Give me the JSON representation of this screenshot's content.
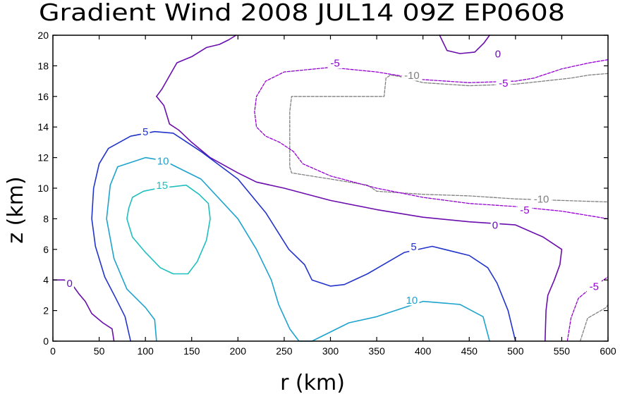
{
  "chart_data": {
    "type": "contour",
    "title": "Gradient Wind 2008 JUL14 09Z  EP0608",
    "xlabel": "r (km)",
    "ylabel": "z (km)",
    "xlim": [
      0,
      600
    ],
    "ylim": [
      0,
      20
    ],
    "xticks": [
      0,
      50,
      100,
      150,
      200,
      250,
      300,
      350,
      400,
      450,
      500,
      550,
      600
    ],
    "yticks": [
      0,
      2,
      4,
      6,
      8,
      10,
      12,
      14,
      16,
      18,
      20
    ],
    "contours": [
      {
        "level": -10,
        "color": "#808080",
        "dashed": true,
        "lines": [
          [
            [
              600,
              17.5
            ],
            [
              580,
              17.4
            ],
            [
              560,
              17.2
            ],
            [
              500,
              16.8
            ],
            [
              450,
              16.7
            ],
            [
              400,
              16.9
            ],
            [
              375,
              17.3
            ],
            [
              365,
              17.4
            ],
            [
              360,
              17.2
            ],
            [
              358,
              16.0
            ],
            [
              258,
              16.0
            ],
            [
              256,
              15.0
            ],
            [
              256,
              11.4
            ],
            [
              258,
              11.0
            ],
            [
              300,
              10.6
            ],
            [
              340,
              10.2
            ],
            [
              350,
              9.8
            ],
            [
              400,
              9.6
            ],
            [
              450,
              9.5
            ],
            [
              500,
              9.3
            ],
            [
              550,
              9.2
            ],
            [
              600,
              9.1
            ]
          ],
          [
            [
              570,
              0
            ],
            [
              578,
              1.5
            ],
            [
              598,
              2.2
            ],
            [
              600,
              2.4
            ]
          ]
        ]
      },
      {
        "level": -5,
        "color": "#9400d3",
        "dashed": true,
        "lines": [
          [
            [
              600,
              18.4
            ],
            [
              580,
              18.2
            ],
            [
              550,
              17.8
            ],
            [
              520,
              17.2
            ],
            [
              500,
              17.0
            ],
            [
              450,
              16.9
            ],
            [
              400,
              17.1
            ],
            [
              350,
              17.6
            ],
            [
              300,
              17.9
            ],
            [
              250,
              17.6
            ],
            [
              230,
              17.0
            ],
            [
              220,
              16.0
            ],
            [
              218,
              15.0
            ],
            [
              220,
              14.0
            ],
            [
              230,
              13.4
            ],
            [
              245,
              13.0
            ],
            [
              260,
              12.4
            ],
            [
              270,
              11.6
            ],
            [
              300,
              10.8
            ],
            [
              350,
              10.0
            ],
            [
              400,
              9.4
            ],
            [
              450,
              9.0
            ],
            [
              500,
              8.8
            ],
            [
              550,
              8.5
            ],
            [
              600,
              8.0
            ]
          ],
          [
            [
              556,
              0
            ],
            [
              560,
              1.5
            ],
            [
              568,
              2.8
            ],
            [
              580,
              3.4
            ],
            [
              600,
              4.2
            ]
          ]
        ]
      },
      {
        "level": 0,
        "color": "#6a0dad",
        "dashed": false,
        "lines": [
          [
            [
              112,
              16.0
            ],
            [
              118,
              16.5
            ],
            [
              134,
              18.2
            ],
            [
              150,
              18.6
            ],
            [
              166,
              19.2
            ],
            [
              180,
              19.4
            ],
            [
              190,
              19.7
            ],
            [
              198,
              20.0
            ]
          ],
          [
            [
              418,
              20.0
            ],
            [
              426,
              19.0
            ],
            [
              440,
              18.8
            ],
            [
              456,
              18.9
            ],
            [
              466,
              19.5
            ],
            [
              472,
              20.0
            ]
          ],
          [
            [
              112,
              16.0
            ],
            [
              120,
              15.4
            ],
            [
              126,
              14.2
            ],
            [
              136,
              13.8
            ],
            [
              150,
              13.0
            ],
            [
              170,
              12.0
            ],
            [
              200,
              11.0
            ],
            [
              220,
              10.4
            ],
            [
              250,
              10.0
            ],
            [
              300,
              9.2
            ],
            [
              350,
              8.6
            ],
            [
              400,
              8.1
            ],
            [
              450,
              7.8
            ],
            [
              500,
              7.6
            ],
            [
              530,
              6.8
            ],
            [
              550,
              6.0
            ],
            [
              548,
              5.0
            ],
            [
              542,
              4.0
            ],
            [
              535,
              3.0
            ],
            [
              533,
              2.0
            ],
            [
              532,
              0.0
            ]
          ],
          [
            [
              0,
              4.0
            ],
            [
              12,
              4.0
            ],
            [
              18,
              3.9
            ],
            [
              22,
              3.6
            ],
            [
              28,
              3.1
            ],
            [
              35,
              2.6
            ],
            [
              42,
              1.8
            ],
            [
              54,
              1.2
            ],
            [
              64,
              0.8
            ],
            [
              66,
              0.0
            ]
          ]
        ]
      },
      {
        "level": 5,
        "color": "#2233cc",
        "dashed": false,
        "lines": [
          [
            [
              84,
              0
            ],
            [
              78,
              1.6
            ],
            [
              68,
              2.8
            ],
            [
              56,
              4.2
            ],
            [
              46,
              6.2
            ],
            [
              42,
              8.0
            ],
            [
              44,
              10.0
            ],
            [
              50,
              11.6
            ],
            [
              60,
              12.6
            ],
            [
              84,
              13.4
            ],
            [
              110,
              13.7
            ],
            [
              130,
              13.6
            ],
            [
              160,
              12.4
            ],
            [
              200,
              10.6
            ],
            [
              230,
              8.4
            ],
            [
              255,
              6.0
            ],
            [
              272,
              5.0
            ],
            [
              280,
              4.0
            ],
            [
              300,
              3.6
            ],
            [
              315,
              3.7
            ],
            [
              340,
              4.4
            ],
            [
              380,
              5.8
            ],
            [
              410,
              6.2
            ],
            [
              450,
              5.6
            ],
            [
              470,
              4.8
            ],
            [
              480,
              3.8
            ],
            [
              492,
              2.0
            ],
            [
              500,
              0.0
            ]
          ]
        ]
      },
      {
        "level": 10,
        "color": "#1ea3cf",
        "dashed": false,
        "lines": [
          [
            [
              112,
              0
            ],
            [
              110,
              1.4
            ],
            [
              100,
              2.2
            ],
            [
              80,
              3.4
            ],
            [
              66,
              5.4
            ],
            [
              58,
              8.0
            ],
            [
              62,
              10.2
            ],
            [
              70,
              11.4
            ],
            [
              100,
              12.0
            ],
            [
              120,
              11.8
            ],
            [
              140,
              11.2
            ],
            [
              160,
              10.6
            ],
            [
              200,
              8.0
            ],
            [
              220,
              6.0
            ],
            [
              236,
              4.0
            ],
            [
              244,
              2.4
            ],
            [
              256,
              0.8
            ],
            [
              266,
              0.0
            ],
            [
              280,
              0.0
            ],
            [
              300,
              0.6
            ],
            [
              320,
              1.2
            ],
            [
              350,
              1.6
            ],
            [
              400,
              2.6
            ],
            [
              440,
              2.4
            ],
            [
              465,
              1.6
            ],
            [
              472,
              0.0
            ]
          ]
        ]
      },
      {
        "level": 15,
        "color": "#1fbfbf",
        "dashed": false,
        "lines": [
          [
            [
              80,
              8.0
            ],
            [
              82,
              8.7
            ],
            [
              86,
              9.4
            ],
            [
              98,
              9.8
            ],
            [
              114,
              10.0
            ],
            [
              130,
              10.1
            ],
            [
              144,
              10.2
            ],
            [
              158,
              9.6
            ],
            [
              168,
              9.0
            ],
            [
              170,
              8.0
            ],
            [
              166,
              6.6
            ],
            [
              156,
              5.2
            ],
            [
              146,
              4.4
            ],
            [
              130,
              4.4
            ],
            [
              116,
              4.8
            ],
            [
              100,
              5.8
            ],
            [
              86,
              6.8
            ],
            [
              80,
              8.0
            ]
          ]
        ]
      }
    ],
    "contour_labels": [
      {
        "text": "-5",
        "x": 305,
        "y": 18.2,
        "color": "#9400d3"
      },
      {
        "text": "-10",
        "x": 388,
        "y": 17.4,
        "color": "#808080"
      },
      {
        "text": "0",
        "x": 481,
        "y": 18.8,
        "color": "#6a0dad"
      },
      {
        "text": "-5",
        "x": 487,
        "y": 16.9,
        "color": "#9400d3"
      },
      {
        "text": "5",
        "x": 100,
        "y": 13.7,
        "color": "#2233cc"
      },
      {
        "text": "10",
        "x": 119,
        "y": 11.8,
        "color": "#1ea3cf"
      },
      {
        "text": "15",
        "x": 118,
        "y": 10.2,
        "color": "#1fbfbf"
      },
      {
        "text": "-10",
        "x": 528,
        "y": 9.3,
        "color": "#808080"
      },
      {
        "text": "-5",
        "x": 510,
        "y": 8.6,
        "color": "#9400d3"
      },
      {
        "text": "0",
        "x": 478,
        "y": 7.6,
        "color": "#6a0dad"
      },
      {
        "text": "5",
        "x": 390,
        "y": 6.2,
        "color": "#2233cc"
      },
      {
        "text": "0",
        "x": 18,
        "y": 3.8,
        "color": "#6a0dad"
      },
      {
        "text": "-5",
        "x": 585,
        "y": 3.6,
        "color": "#9400d3"
      },
      {
        "text": "10",
        "x": 388,
        "y": 2.7,
        "color": "#1ea3cf"
      }
    ]
  }
}
